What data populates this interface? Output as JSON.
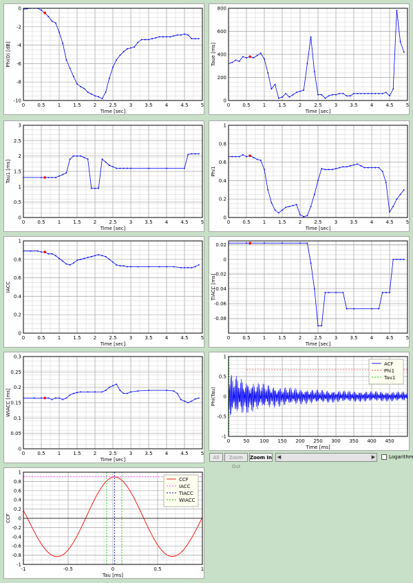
{
  "toolbar": {
    "all_label": "All",
    "zoom_out_label": "Zoom Out",
    "zoom_in_label": "Zoom In",
    "scroll_left": "◀",
    "scroll_right": "▶",
    "log_label": "Logarithm"
  },
  "chart_data": [
    {
      "id": "phi0",
      "type": "line",
      "xlabel": "Time [sec]",
      "ylabel": "Phi(0) [dB]",
      "xlim": [
        0,
        5
      ],
      "ylim": [
        -10,
        0
      ],
      "xticks": [
        0,
        0.5,
        1,
        1.5,
        2,
        2.5,
        3,
        3.5,
        4,
        4.5,
        5
      ],
      "xticklabels": [
        "0",
        "0.5",
        "1",
        "1.5",
        "2",
        "2.5",
        "3",
        "3.5",
        "4",
        "4.5",
        "5"
      ],
      "yticks": [
        -10,
        -8,
        -6,
        -4,
        -2,
        0
      ],
      "yticklabels": [
        "-10",
        "-8",
        "-6",
        "-4",
        "-2",
        "0"
      ],
      "series": [
        {
          "color": "#0000ff",
          "x": [
            0,
            0.1,
            0.2,
            0.3,
            0.4,
            0.5,
            0.6,
            0.7,
            0.8,
            0.9,
            1.0,
            1.1,
            1.2,
            1.3,
            1.4,
            1.5,
            1.6,
            1.7,
            1.8,
            1.9,
            2.0,
            2.1,
            2.2,
            2.3,
            2.4,
            2.5,
            2.6,
            2.7,
            2.8,
            2.9,
            3.0,
            3.1,
            3.2,
            3.3,
            3.4,
            3.5,
            3.6,
            3.7,
            3.8,
            3.9,
            4.0,
            4.1,
            4.2,
            4.3,
            4.4,
            4.5,
            4.6,
            4.7,
            4.8,
            4.9
          ],
          "y": [
            -0.1,
            -0.05,
            0,
            0,
            0,
            -0.2,
            -0.5,
            -0.9,
            -1.4,
            -1.6,
            -2.6,
            -3.8,
            -5.6,
            -6.5,
            -7.4,
            -8.2,
            -8.5,
            -8.7,
            -9.1,
            -9.3,
            -9.5,
            -9.6,
            -9.8,
            -9.1,
            -7.6,
            -6.4,
            -5.6,
            -5.1,
            -4.7,
            -4.4,
            -4.3,
            -4.2,
            -3.7,
            -3.4,
            -3.4,
            -3.4,
            -3.3,
            -3.2,
            -3.1,
            -3.1,
            -3.1,
            -3.1,
            -3.0,
            -2.9,
            -2.9,
            -2.8,
            -2.9,
            -3.3,
            -3.3,
            -3.3
          ]
        }
      ],
      "marker": {
        "x": 0.6,
        "y": -0.5
      }
    },
    {
      "id": "taue",
      "type": "line",
      "xlabel": "Time [sec]",
      "ylabel": "Taue [ms]",
      "xlim": [
        0,
        5
      ],
      "ylim": [
        0,
        800
      ],
      "xticks": [
        0,
        0.5,
        1,
        1.5,
        2,
        2.5,
        3,
        3.5,
        4,
        4.5,
        5
      ],
      "xticklabels": [
        "0",
        "0.5",
        "1",
        "1.5",
        "2",
        "2.5",
        "3",
        "3.5",
        "4",
        "4.5",
        "5"
      ],
      "yticks": [
        0,
        200,
        400,
        600,
        800
      ],
      "yticklabels": [
        "0",
        "200",
        "400",
        "600",
        "800"
      ],
      "series": [
        {
          "color": "#0000ff",
          "x": [
            0,
            0.1,
            0.2,
            0.3,
            0.4,
            0.5,
            0.6,
            0.7,
            0.8,
            0.9,
            1.0,
            1.1,
            1.2,
            1.3,
            1.4,
            1.5,
            1.6,
            1.7,
            1.8,
            1.9,
            2.0,
            2.1,
            2.2,
            2.3,
            2.4,
            2.5,
            2.6,
            2.7,
            2.8,
            2.9,
            3.0,
            3.1,
            3.2,
            3.3,
            3.4,
            3.5,
            3.6,
            3.7,
            3.8,
            3.9,
            4.0,
            4.1,
            4.2,
            4.3,
            4.4,
            4.5,
            4.6,
            4.7,
            4.8,
            4.9
          ],
          "y": [
            320,
            330,
            350,
            340,
            380,
            370,
            380,
            370,
            390,
            410,
            360,
            240,
            100,
            140,
            20,
            30,
            60,
            30,
            50,
            70,
            80,
            90,
            320,
            550,
            250,
            50,
            50,
            20,
            40,
            50,
            50,
            60,
            60,
            40,
            40,
            60,
            60,
            60,
            60,
            60,
            60,
            60,
            60,
            60,
            70,
            40,
            100,
            780,
            510,
            420
          ]
        }
      ],
      "marker": {
        "x": 0.6,
        "y": 380
      }
    },
    {
      "id": "tau1",
      "type": "line",
      "xlabel": "Time [sec]",
      "ylabel": "Tau1 [ms]",
      "xlim": [
        0,
        5
      ],
      "ylim": [
        0,
        3
      ],
      "xticks": [
        0,
        0.5,
        1,
        1.5,
        2,
        2.5,
        3,
        3.5,
        4,
        4.5,
        5
      ],
      "xticklabels": [
        "0",
        "0.5",
        "1",
        "1.5",
        "2",
        "2.5",
        "3",
        "3.5",
        "4",
        "4.5",
        "5"
      ],
      "yticks": [
        0,
        0.5,
        1,
        1.5,
        2,
        2.5,
        3
      ],
      "yticklabels": [
        "0",
        "0.5",
        "1",
        "1.5",
        "2",
        "2.5",
        "3"
      ],
      "series": [
        {
          "color": "#0000ff",
          "x": [
            0,
            0.5,
            0.6,
            0.7,
            0.8,
            0.9,
            1.0,
            1.1,
            1.2,
            1.3,
            1.4,
            1.5,
            1.6,
            1.7,
            1.8,
            1.9,
            2.0,
            2.1,
            2.2,
            2.3,
            2.4,
            2.5,
            2.6,
            2.7,
            2.8,
            2.9,
            3.0,
            3.5,
            4.0,
            4.5,
            4.6,
            4.7,
            4.8,
            4.9
          ],
          "y": [
            1.3,
            1.3,
            1.3,
            1.3,
            1.3,
            1.3,
            1.35,
            1.4,
            1.45,
            1.9,
            2.0,
            2.0,
            2.0,
            1.95,
            1.9,
            0.95,
            0.95,
            0.95,
            1.9,
            1.8,
            1.7,
            1.65,
            1.6,
            1.6,
            1.6,
            1.6,
            1.6,
            1.6,
            1.6,
            1.6,
            2.05,
            2.07,
            2.07,
            2.07
          ]
        }
      ],
      "marker": {
        "x": 0.6,
        "y": 1.3
      }
    },
    {
      "id": "phi1",
      "type": "line",
      "xlabel": "Time [sec]",
      "ylabel": "Phi1",
      "xlim": [
        0,
        5
      ],
      "ylim": [
        0,
        1
      ],
      "xticks": [
        0,
        0.5,
        1,
        1.5,
        2,
        2.5,
        3,
        3.5,
        4,
        4.5,
        5
      ],
      "xticklabels": [
        "0",
        "0.5",
        "1",
        "1.5",
        "2",
        "2.5",
        "3",
        "3.5",
        "4",
        "4.5",
        "5"
      ],
      "yticks": [
        0,
        0.2,
        0.4,
        0.6,
        0.8,
        1
      ],
      "yticklabels": [
        "0",
        "0.2",
        "0.4",
        "0.6",
        "0.8",
        "1"
      ],
      "series": [
        {
          "color": "#0000ff",
          "x": [
            0,
            0.1,
            0.2,
            0.3,
            0.4,
            0.5,
            0.6,
            0.7,
            0.8,
            0.9,
            1.0,
            1.1,
            1.2,
            1.3,
            1.4,
            1.5,
            1.6,
            1.7,
            1.8,
            1.9,
            2.0,
            2.1,
            2.2,
            2.3,
            2.4,
            2.5,
            2.6,
            2.7,
            2.8,
            2.9,
            3.0,
            3.1,
            3.2,
            3.3,
            3.4,
            3.5,
            3.6,
            3.7,
            3.8,
            3.9,
            4.0,
            4.1,
            4.2,
            4.3,
            4.4,
            4.5,
            4.6,
            4.7,
            4.8,
            4.9
          ],
          "y": [
            0.66,
            0.66,
            0.66,
            0.66,
            0.68,
            0.66,
            0.67,
            0.65,
            0.63,
            0.62,
            0.52,
            0.3,
            0.16,
            0.08,
            0.05,
            0.08,
            0.11,
            0.12,
            0.13,
            0.14,
            0.03,
            0.01,
            0.02,
            0.12,
            0.25,
            0.4,
            0.53,
            0.52,
            0.52,
            0.52,
            0.53,
            0.54,
            0.55,
            0.55,
            0.56,
            0.57,
            0.58,
            0.56,
            0.54,
            0.54,
            0.54,
            0.54,
            0.54,
            0.5,
            0.38,
            0.06,
            0.12,
            0.2,
            0.25,
            0.3
          ]
        }
      ],
      "marker": {
        "x": 0.6,
        "y": 0.67
      }
    },
    {
      "id": "iacc",
      "type": "line",
      "xlabel": "Time [sec]",
      "ylabel": "IACC",
      "xlim": [
        0,
        5
      ],
      "ylim": [
        0,
        1
      ],
      "xticks": [
        0,
        0.5,
        1,
        1.5,
        2,
        2.5,
        3,
        3.5,
        4,
        4.5,
        5
      ],
      "xticklabels": [
        "0",
        "0.5",
        "1",
        "1.5",
        "2",
        "2.5",
        "3",
        "3.5",
        "4",
        "4.5",
        "5"
      ],
      "yticks": [
        0,
        0.2,
        0.4,
        0.6,
        0.8,
        1
      ],
      "yticklabels": [
        "0",
        "0.2",
        "0.4",
        "0.6",
        "0.8",
        "1"
      ],
      "series": [
        {
          "color": "#0000ff",
          "x": [
            0,
            0.2,
            0.4,
            0.5,
            0.6,
            0.7,
            0.8,
            0.9,
            1.0,
            1.1,
            1.2,
            1.3,
            1.4,
            1.5,
            1.6,
            1.7,
            1.8,
            1.9,
            2.0,
            2.1,
            2.2,
            2.3,
            2.4,
            2.5,
            2.6,
            2.7,
            2.8,
            2.9,
            3.0,
            3.2,
            3.5,
            3.8,
            4.0,
            4.2,
            4.4,
            4.5,
            4.6,
            4.7,
            4.8,
            4.9
          ],
          "y": [
            0.89,
            0.89,
            0.89,
            0.88,
            0.88,
            0.86,
            0.86,
            0.84,
            0.81,
            0.78,
            0.75,
            0.74,
            0.76,
            0.79,
            0.8,
            0.81,
            0.82,
            0.83,
            0.84,
            0.85,
            0.84,
            0.83,
            0.8,
            0.77,
            0.74,
            0.73,
            0.73,
            0.72,
            0.72,
            0.72,
            0.72,
            0.72,
            0.72,
            0.72,
            0.71,
            0.71,
            0.71,
            0.71,
            0.72,
            0.74
          ]
        }
      ],
      "marker": {
        "x": 0.6,
        "y": 0.88
      }
    },
    {
      "id": "tiacc",
      "type": "line",
      "xlabel": "Time [sec]",
      "ylabel": "TIACC [ms]",
      "xlim": [
        0,
        5
      ],
      "ylim": [
        -0.1,
        0.025
      ],
      "xticks": [
        0,
        0.5,
        1,
        1.5,
        2,
        2.5,
        3,
        3.5,
        4,
        4.5,
        5
      ],
      "xticklabels": [
        "0",
        "0.5",
        "1",
        "1.5",
        "2",
        "2.5",
        "3",
        "3.5",
        "4",
        "4.5",
        "5"
      ],
      "yticks": [
        -0.08,
        -0.06,
        -0.04,
        -0.02,
        0,
        0.02
      ],
      "yticklabels": [
        "-0.08",
        "-0.06",
        "-0.04",
        "-0.02",
        "0",
        "0.02"
      ],
      "series": [
        {
          "color": "#0000ff",
          "x": [
            0,
            0.5,
            1.0,
            1.5,
            2.0,
            2.2,
            2.3,
            2.4,
            2.5,
            2.6,
            2.7,
            2.8,
            3.0,
            3.2,
            3.3,
            3.5,
            4.0,
            4.2,
            4.3,
            4.4,
            4.5,
            4.6,
            4.7,
            4.8,
            4.9
          ],
          "y": [
            0.022,
            0.022,
            0.022,
            0.022,
            0.022,
            0.022,
            -0.005,
            -0.04,
            -0.09,
            -0.09,
            -0.045,
            -0.045,
            -0.045,
            -0.045,
            -0.067,
            -0.067,
            -0.067,
            -0.067,
            -0.045,
            -0.045,
            -0.045,
            0,
            0,
            0,
            0
          ]
        }
      ],
      "marker": {
        "x": 0.6,
        "y": 0.022
      }
    },
    {
      "id": "wiacc",
      "type": "line",
      "xlabel": "Time [sec]",
      "ylabel": "WIACC [ms]",
      "xlim": [
        0,
        5
      ],
      "ylim": [
        0,
        0.3
      ],
      "xticks": [
        0,
        0.5,
        1,
        1.5,
        2,
        2.5,
        3,
        3.5,
        4,
        4.5,
        5
      ],
      "xticklabels": [
        "0",
        "0.5",
        "1",
        "1.5",
        "2",
        "2.5",
        "3",
        "3.5",
        "4",
        "4.5",
        "5"
      ],
      "yticks": [
        0,
        0.05,
        0.1,
        0.15,
        0.2,
        0.25,
        0.3
      ],
      "yticklabels": [
        "0",
        "0.05",
        "0.1",
        "0.15",
        "0.2",
        "0.25",
        "0.3"
      ],
      "series": [
        {
          "color": "#0000ff",
          "x": [
            0,
            0.3,
            0.5,
            0.6,
            0.7,
            0.8,
            0.9,
            1.0,
            1.1,
            1.2,
            1.3,
            1.4,
            1.5,
            1.6,
            1.8,
            2.0,
            2.2,
            2.3,
            2.4,
            2.5,
            2.6,
            2.7,
            2.8,
            2.9,
            3.0,
            3.2,
            3.5,
            4.0,
            4.2,
            4.3,
            4.4,
            4.5,
            4.6,
            4.7,
            4.8,
            4.9
          ],
          "y": [
            0.165,
            0.165,
            0.165,
            0.165,
            0.165,
            0.16,
            0.165,
            0.165,
            0.16,
            0.165,
            0.175,
            0.18,
            0.183,
            0.185,
            0.185,
            0.185,
            0.185,
            0.19,
            0.2,
            0.205,
            0.21,
            0.19,
            0.18,
            0.18,
            0.185,
            0.188,
            0.19,
            0.19,
            0.188,
            0.18,
            0.16,
            0.155,
            0.15,
            0.155,
            0.162,
            0.165
          ]
        }
      ],
      "marker": {
        "x": 0.6,
        "y": 0.165
      }
    },
    {
      "id": "acf",
      "type": "line",
      "xlabel": "Time [ms]",
      "ylabel": "Phi(Tau)",
      "xlim": [
        0,
        500
      ],
      "ylim": [
        -1,
        1
      ],
      "xticks": [
        0,
        50,
        100,
        150,
        200,
        250,
        300,
        350,
        400,
        450
      ],
      "xticklabels": [
        "0",
        "50",
        "100",
        "150",
        "200",
        "250",
        "300",
        "350",
        "400",
        "450"
      ],
      "yticks": [
        -1,
        -0.5,
        0,
        0.5,
        1
      ],
      "yticklabels": [
        "-1",
        "-0.5",
        "0",
        "0.5",
        "1"
      ],
      "acf_envelope": {
        "start": 0.6,
        "end": 0.12
      },
      "series": [
        {
          "name": "ACF",
          "color": "#0000ff"
        },
        {
          "name": "Phi1",
          "color": "#ff4040",
          "dash": true,
          "y_const": 0.67,
          "x_from": 50
        },
        {
          "name": "Tau1",
          "color": "#00c000",
          "dash": true,
          "x_const": 1.3
        }
      ],
      "legend": [
        "ACF",
        "Phi1",
        "Tau1"
      ]
    },
    {
      "id": "ccf",
      "type": "line",
      "xlabel": "Tau [ms]",
      "ylabel": "CCF",
      "xlim": [
        -1,
        1
      ],
      "ylim": [
        -1,
        1
      ],
      "xticks": [
        -1,
        -0.5,
        0,
        0.5,
        1
      ],
      "xticklabels": [
        "-1",
        "-0.5",
        "0",
        "0.5",
        "1"
      ],
      "yticks": [
        -1,
        -0.8,
        -0.6,
        -0.4,
        -0.2,
        0,
        0.2,
        0.4,
        0.6,
        0.8,
        1
      ],
      "yticklabels": [
        "-1",
        "-0.8",
        "-0.6",
        "-0.4",
        "-0.2",
        "0",
        "0.2",
        "0.4",
        "0.6",
        "0.8",
        "1"
      ],
      "ccf_params": {
        "peak": 0.9,
        "peak_at": 0.02
      },
      "series": [
        {
          "name": "CCF",
          "color": "#ff0000"
        },
        {
          "name": "IACC",
          "color": "#ff40ff",
          "dash": true,
          "y_const": 0.9
        },
        {
          "name": "TIACC",
          "color": "#0000a0",
          "dash": true,
          "x_const": 0.02
        },
        {
          "name": "WIACC",
          "color": "#00c000",
          "dash": true,
          "x_pair": [
            -0.07,
            0.1
          ]
        }
      ],
      "legend": [
        "CCF",
        "IACC",
        "TIACC",
        "WIACC"
      ]
    }
  ]
}
